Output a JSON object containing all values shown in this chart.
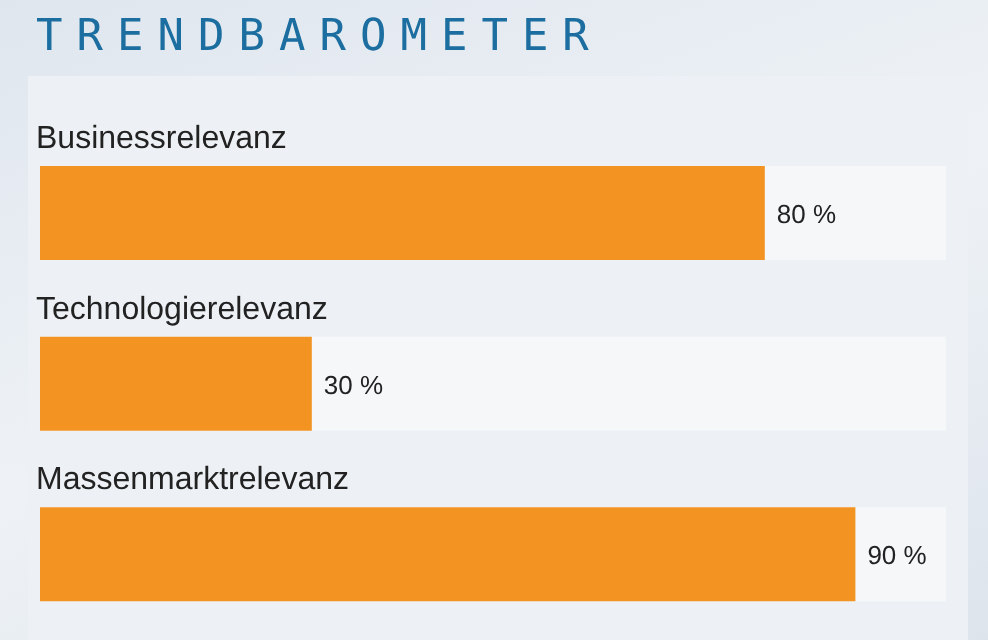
{
  "chart_data": {
    "type": "bar",
    "orientation": "horizontal",
    "title": "TRENDBAROMETER",
    "categories": [
      "Businessrelevanz",
      "Technologierelevanz",
      "Massenmarktrelevanz"
    ],
    "values": [
      80,
      30,
      90
    ],
    "value_labels": [
      "80 %",
      "30 %",
      "90 %"
    ],
    "color": "#f39322",
    "xlim": [
      0,
      100
    ],
    "tick_labels": false,
    "grid": false,
    "legend": false
  }
}
